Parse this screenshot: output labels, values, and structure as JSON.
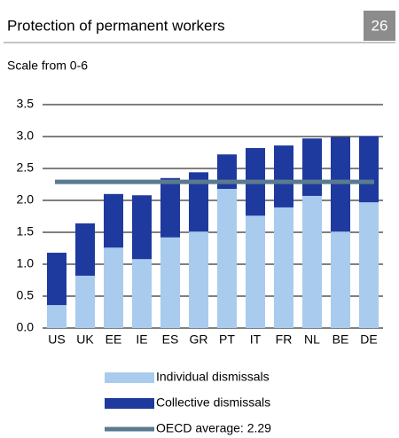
{
  "header": {
    "number": "26"
  },
  "chart_data": {
    "type": "bar",
    "stacked": true,
    "title": "Protection of permanent workers",
    "subtitle": "Scale from 0-6",
    "categories": [
      "US",
      "UK",
      "EE",
      "IE",
      "ES",
      "GR",
      "PT",
      "IT",
      "FR",
      "NL",
      "BE",
      "DE"
    ],
    "series": [
      {
        "name": "Individual dismissals",
        "color": "#a9cbee",
        "values": [
          0.36,
          0.82,
          1.26,
          1.08,
          1.42,
          1.51,
          2.18,
          1.76,
          1.89,
          2.07,
          1.51,
          1.97
        ]
      },
      {
        "name": "Collective dismissals",
        "color": "#1f3a9e",
        "values": [
          0.82,
          0.82,
          0.84,
          1.0,
          0.93,
          0.93,
          0.54,
          1.06,
          0.97,
          0.9,
          1.48,
          1.04
        ]
      }
    ],
    "reference_line": {
      "name": "OECD average: 2.29",
      "value": 2.29,
      "color": "#5b7a8f"
    },
    "ylim": [
      0,
      3.5
    ],
    "yticks": [
      {
        "value": 0,
        "label": "0.0"
      },
      0.5,
      {
        "value": 1,
        "label": "1.0"
      },
      1.5,
      {
        "value": 2,
        "label": "2.0"
      },
      2.5,
      {
        "value": 3,
        "label": "3.0"
      },
      3.5
    ],
    "grid": true
  }
}
